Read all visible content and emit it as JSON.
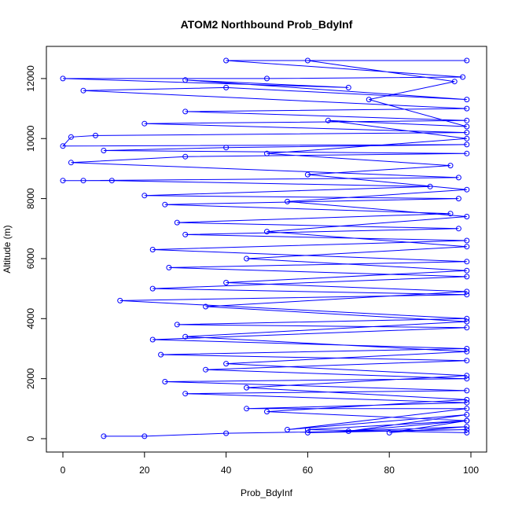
{
  "chart_data": {
    "type": "line",
    "title": "ATOM2 Northbound Prob_BdyInf",
    "xlabel": "Prob_BdyInf",
    "ylabel": "Altitude (m)",
    "xlim": [
      0,
      100
    ],
    "ylim": [
      0,
      12600
    ],
    "xticks": [
      0,
      20,
      40,
      60,
      80,
      100
    ],
    "yticks": [
      0,
      2000,
      4000,
      6000,
      8000,
      10000,
      12000
    ],
    "grid": false,
    "legend": "none",
    "series_color": "#0000ff",
    "marker": "open-circle",
    "series": [
      {
        "points": [
          [
            10,
            80
          ],
          [
            20,
            80
          ],
          [
            40,
            180
          ],
          [
            99,
            300
          ],
          [
            60,
            200
          ],
          [
            99,
            400
          ],
          [
            80,
            200
          ],
          [
            99,
            600
          ],
          [
            70,
            250
          ],
          [
            99,
            800
          ],
          [
            55,
            300
          ],
          [
            99,
            1000
          ],
          [
            45,
            1000
          ],
          [
            99,
            1200
          ],
          [
            30,
            1500
          ],
          [
            99,
            1600
          ],
          [
            25,
            1900
          ],
          [
            99,
            2000
          ],
          [
            35,
            2300
          ],
          [
            99,
            2600
          ],
          [
            24,
            2800
          ],
          [
            99,
            3000
          ],
          [
            22,
            3300
          ],
          [
            99,
            3700
          ],
          [
            28,
            3800
          ],
          [
            99,
            4000
          ],
          [
            14,
            4600
          ],
          [
            99,
            4800
          ],
          [
            22,
            5000
          ],
          [
            99,
            5400
          ],
          [
            26,
            5700
          ],
          [
            99,
            5900
          ],
          [
            22,
            6300
          ],
          [
            99,
            6600
          ],
          [
            30,
            6800
          ],
          [
            97,
            7000
          ],
          [
            28,
            7200
          ],
          [
            95,
            7500
          ],
          [
            25,
            7800
          ],
          [
            97,
            8000
          ],
          [
            20,
            8100
          ],
          [
            90,
            8400
          ],
          [
            12,
            8600
          ],
          [
            0,
            8600
          ],
          [
            5,
            8600
          ],
          [
            97,
            8700
          ],
          [
            2,
            9200
          ],
          [
            30,
            9400
          ],
          [
            99,
            9500
          ],
          [
            10,
            9600
          ],
          [
            40,
            9700
          ],
          [
            99,
            9800
          ],
          [
            0,
            9750
          ],
          [
            2,
            10050
          ],
          [
            8,
            10100
          ],
          [
            99,
            10200
          ],
          [
            20,
            10500
          ],
          [
            99,
            10600
          ],
          [
            30,
            10900
          ],
          [
            99,
            11000
          ],
          [
            5,
            11600
          ],
          [
            40,
            11700
          ],
          [
            99,
            11300
          ],
          [
            30,
            11950
          ],
          [
            70,
            11700
          ],
          [
            0,
            12000
          ],
          [
            50,
            12000
          ],
          [
            98,
            12050
          ],
          [
            40,
            12600
          ],
          [
            99,
            12600
          ],
          [
            60,
            12600
          ],
          [
            96,
            11900
          ],
          [
            75,
            11300
          ],
          [
            99,
            10400
          ],
          [
            65,
            10600
          ],
          [
            99,
            10000
          ],
          [
            50,
            9500
          ],
          [
            95,
            9100
          ],
          [
            60,
            8800
          ],
          [
            99,
            8300
          ],
          [
            55,
            7900
          ],
          [
            99,
            7400
          ],
          [
            50,
            6900
          ],
          [
            99,
            6400
          ],
          [
            45,
            6000
          ],
          [
            99,
            5600
          ],
          [
            40,
            5200
          ],
          [
            99,
            4900
          ],
          [
            35,
            4400
          ],
          [
            99,
            3900
          ],
          [
            30,
            3400
          ],
          [
            99,
            2900
          ],
          [
            40,
            2500
          ],
          [
            99,
            2100
          ],
          [
            45,
            1700
          ],
          [
            99,
            1300
          ],
          [
            50,
            900
          ],
          [
            99,
            600
          ],
          [
            60,
            300
          ],
          [
            99,
            200
          ]
        ]
      }
    ]
  }
}
